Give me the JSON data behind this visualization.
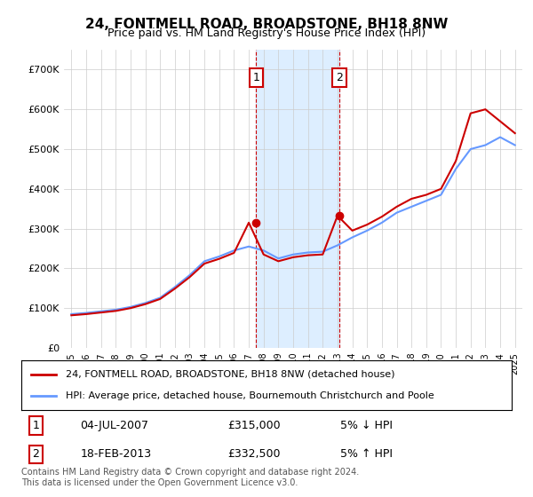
{
  "title": "24, FONTMELL ROAD, BROADSTONE, BH18 8NW",
  "subtitle": "Price paid vs. HM Land Registry's House Price Index (HPI)",
  "legend_line1": "24, FONTMELL ROAD, BROADSTONE, BH18 8NW (detached house)",
  "legend_line2": "HPI: Average price, detached house, Bournemouth Christchurch and Poole",
  "footer": "Contains HM Land Registry data © Crown copyright and database right 2024.\nThis data is licensed under the Open Government Licence v3.0.",
  "sale1_date": "04-JUL-2007",
  "sale1_price": "£315,000",
  "sale1_hpi": "5% ↓ HPI",
  "sale2_date": "18-FEB-2013",
  "sale2_price": "£332,500",
  "sale2_hpi": "5% ↑ HPI",
  "sale1_year": 2007.5,
  "sale2_year": 2013.12,
  "hpi_color": "#6699ff",
  "price_color": "#cc0000",
  "shaded_color": "#ddeeff",
  "grid_color": "#cccccc",
  "background_color": "#ffffff",
  "ylim": [
    0,
    750000
  ],
  "xlim_start": 1994.5,
  "xlim_end": 2025.5,
  "years": [
    1995,
    1996,
    1997,
    1998,
    1999,
    2000,
    2001,
    2002,
    2003,
    2004,
    2005,
    2006,
    2007,
    2008,
    2009,
    2010,
    2011,
    2012,
    2013,
    2014,
    2015,
    2016,
    2017,
    2018,
    2019,
    2020,
    2021,
    2022,
    2023,
    2024,
    2025
  ],
  "hpi_values": [
    85000,
    88000,
    92000,
    96000,
    103000,
    113000,
    126000,
    153000,
    183000,
    218000,
    230000,
    245000,
    255000,
    245000,
    225000,
    235000,
    240000,
    242000,
    258000,
    278000,
    295000,
    315000,
    340000,
    355000,
    370000,
    385000,
    450000,
    500000,
    510000,
    530000,
    510000
  ],
  "price_values": [
    82000,
    85000,
    89000,
    93000,
    100000,
    110000,
    123000,
    149000,
    178000,
    212000,
    224000,
    239000,
    315000,
    235000,
    218000,
    228000,
    233000,
    235000,
    332500,
    295000,
    310000,
    330000,
    355000,
    375000,
    385000,
    400000,
    470000,
    590000,
    600000,
    570000,
    540000
  ]
}
